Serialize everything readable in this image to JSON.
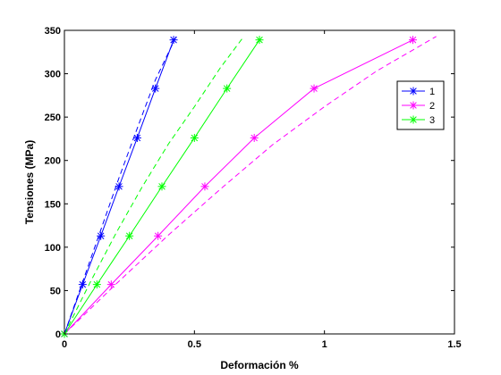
{
  "chart_data": {
    "type": "line",
    "title": "",
    "xlabel": "Deformación %",
    "ylabel": "Tensiones (MPa)",
    "xlim": [
      0,
      1.5
    ],
    "ylim": [
      0,
      350
    ],
    "xticks": [
      0,
      0.5,
      1,
      1.5
    ],
    "xtick_labels": [
      "0",
      "0.5",
      "1",
      "1.5"
    ],
    "yticks": [
      0,
      50,
      100,
      150,
      200,
      250,
      300,
      350
    ],
    "ytick_labels": [
      "0",
      "50",
      "100",
      "150",
      "200",
      "250",
      "300",
      "350"
    ],
    "grid": false,
    "legend_position": "top-right",
    "series": [
      {
        "name": "1",
        "color": "#0000ff",
        "marker": "asterisk",
        "x": [
          0,
          0.07,
          0.14,
          0.21,
          0.28,
          0.35,
          0.42
        ],
        "y": [
          0,
          57,
          113,
          170,
          226,
          283,
          339
        ],
        "dashed_x": [
          0,
          0.07,
          0.14,
          0.21,
          0.28,
          0.35,
          0.43
        ],
        "dashed_y": [
          0,
          60,
          120,
          180,
          237,
          293,
          343
        ]
      },
      {
        "name": "2",
        "color": "#ff00ff",
        "marker": "asterisk",
        "x": [
          0,
          0.18,
          0.36,
          0.54,
          0.73,
          0.96,
          1.34
        ],
        "y": [
          0,
          57,
          113,
          170,
          226,
          283,
          339
        ],
        "dashed_x": [
          0,
          0.2,
          0.4,
          0.6,
          0.8,
          1.0,
          1.2,
          1.43
        ],
        "dashed_y": [
          0,
          58,
          114,
          167,
          218,
          262,
          303,
          343
        ]
      },
      {
        "name": "3",
        "color": "#00ff00",
        "marker": "asterisk",
        "x": [
          0,
          0.125,
          0.25,
          0.375,
          0.5,
          0.625,
          0.75
        ],
        "y": [
          0,
          57,
          113,
          170,
          226,
          283,
          339
        ],
        "dashed_x": [
          0,
          0.1,
          0.2,
          0.3,
          0.4,
          0.5,
          0.6,
          0.69
        ],
        "dashed_y": [
          0,
          60,
          117,
          170,
          219,
          262,
          307,
          343
        ]
      }
    ]
  }
}
